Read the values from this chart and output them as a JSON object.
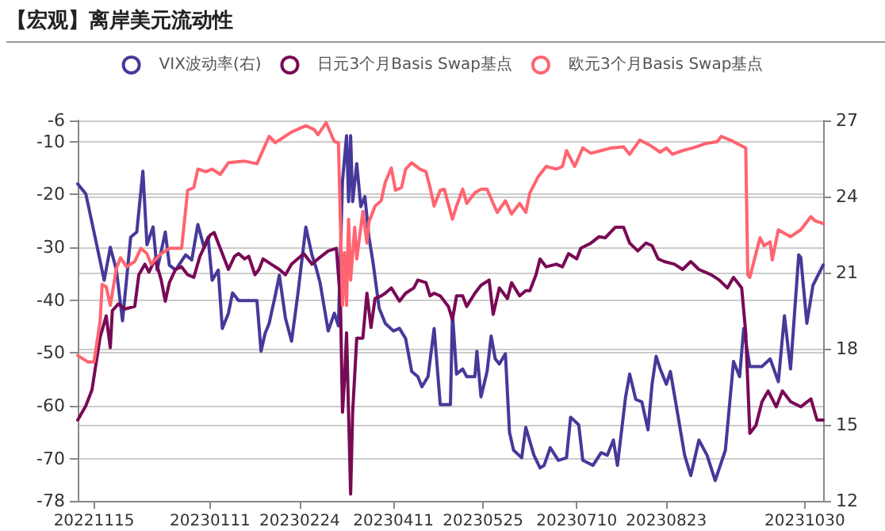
{
  "chart_data": {
    "type": "line",
    "title": "【宏观】离岸美元流动性",
    "legend": "top",
    "grid": "y",
    "marker": "none",
    "line_style": "solid",
    "xlim": [
      "2022-11-07",
      "2023-11-08"
    ],
    "xticks": [
      {
        "value": "2022-11-15",
        "label": "20221115"
      },
      {
        "value": "2023-01-11",
        "label": "20230111"
      },
      {
        "value": "2023-02-24",
        "label": "20230224"
      },
      {
        "value": "2023-04-11",
        "label": "20230411"
      },
      {
        "value": "2023-05-25",
        "label": "20230525"
      },
      {
        "value": "2023-07-10",
        "label": "20230710"
      },
      {
        "value": "2023-08-23",
        "label": "20230823"
      },
      {
        "value": "2023-10-30",
        "label": "20231030"
      }
    ],
    "ylim": [
      -78,
      -6
    ],
    "yticks": [
      -78,
      -70,
      -60,
      -50,
      -40,
      -30,
      -20,
      -10,
      -6
    ],
    "y2lim": [
      12,
      27
    ],
    "y2ticks": [
      12,
      15,
      18,
      21,
      24,
      27
    ],
    "series": [
      {
        "name": "VIX波动率(右)",
        "color": "#46399a",
        "axis": "y2",
        "x": [
          "2022-11-07",
          "2022-11-11",
          "2022-11-15",
          "2022-11-20",
          "2022-11-23",
          "2022-11-26",
          "2022-11-29",
          "2022-12-03",
          "2022-12-06",
          "2022-12-09",
          "2022-12-11",
          "2022-12-14",
          "2022-12-16",
          "2022-12-20",
          "2022-12-22",
          "2022-12-25",
          "2022-12-30",
          "2023-01-02",
          "2023-01-05",
          "2023-01-08",
          "2023-01-10",
          "2023-01-12",
          "2023-01-15",
          "2023-01-17",
          "2023-01-20",
          "2023-01-22",
          "2023-01-25",
          "2023-01-30",
          "2023-02-03",
          "2023-02-05",
          "2023-02-07",
          "2023-02-09",
          "2023-02-12",
          "2023-02-14",
          "2023-02-17",
          "2023-02-20",
          "2023-02-23",
          "2023-02-27",
          "2023-03-02",
          "2023-03-04",
          "2023-03-06",
          "2023-03-10",
          "2023-03-13",
          "2023-03-15",
          "2023-03-17",
          "2023-03-19",
          "2023-03-20",
          "2023-03-21",
          "2023-03-22",
          "2023-03-24",
          "2023-03-26",
          "2023-03-28",
          "2023-03-30",
          "2023-04-01",
          "2023-04-04",
          "2023-04-07",
          "2023-04-11",
          "2023-04-14",
          "2023-04-17",
          "2023-04-20",
          "2023-04-23",
          "2023-04-25",
          "2023-04-28",
          "2023-05-01",
          "2023-05-04",
          "2023-05-09",
          "2023-05-10",
          "2023-05-12",
          "2023-05-15",
          "2023-05-17",
          "2023-05-21",
          "2023-05-22",
          "2023-05-24",
          "2023-05-27",
          "2023-05-29",
          "2023-05-31",
          "2023-06-02",
          "2023-06-05",
          "2023-06-07",
          "2023-06-09",
          "2023-06-13",
          "2023-06-15",
          "2023-06-19",
          "2023-06-22",
          "2023-06-24",
          "2023-06-27",
          "2023-07-01",
          "2023-07-05",
          "2023-07-07",
          "2023-07-11",
          "2023-07-13",
          "2023-07-18",
          "2023-07-22",
          "2023-07-25",
          "2023-07-28",
          "2023-07-30",
          "2023-08-03",
          "2023-08-05",
          "2023-08-08",
          "2023-08-11",
          "2023-08-14",
          "2023-08-16",
          "2023-08-18",
          "2023-08-20",
          "2023-08-23",
          "2023-08-25",
          "2023-08-28",
          "2023-09-01",
          "2023-09-04",
          "2023-09-08",
          "2023-09-12",
          "2023-09-16",
          "2023-09-21",
          "2023-09-25",
          "2023-09-28",
          "2023-09-30",
          "2023-10-03",
          "2023-10-09",
          "2023-10-13",
          "2023-10-17",
          "2023-10-20",
          "2023-10-23",
          "2023-10-27",
          "2023-10-28",
          "2023-10-31",
          "2023-11-03",
          "2023-11-08"
        ],
        "values": [
          24.5,
          24.1,
          22.6,
          20.7,
          22.0,
          21.1,
          19.1,
          22.4,
          22.6,
          25.0,
          22.1,
          22.8,
          21.1,
          22.6,
          21.3,
          21.1,
          21.7,
          21.5,
          22.9,
          22.0,
          22.4,
          20.7,
          21.1,
          18.8,
          19.4,
          20.2,
          19.9,
          19.9,
          19.9,
          17.9,
          18.6,
          19.0,
          20.1,
          20.9,
          19.2,
          18.3,
          20.1,
          22.8,
          21.7,
          21.2,
          20.6,
          18.7,
          19.4,
          18.9,
          24.6,
          26.4,
          23.8,
          26.4,
          23.8,
          25.3,
          23.6,
          24.0,
          22.4,
          21.4,
          19.6,
          19.0,
          18.7,
          18.8,
          18.4,
          17.1,
          16.9,
          16.5,
          16.9,
          18.8,
          15.8,
          15.8,
          19.4,
          17.0,
          17.2,
          16.9,
          16.9,
          17.9,
          16.1,
          17.1,
          18.5,
          17.6,
          17.4,
          17.8,
          14.7,
          14.0,
          13.7,
          14.9,
          13.8,
          13.3,
          13.4,
          14.1,
          13.6,
          13.7,
          15.3,
          15.0,
          13.6,
          13.4,
          13.9,
          13.8,
          14.4,
          13.4,
          16.1,
          17.0,
          16.0,
          15.9,
          14.8,
          16.6,
          17.7,
          17.2,
          16.6,
          17.1,
          15.7,
          13.8,
          13.0,
          14.4,
          13.8,
          12.8,
          14.0,
          17.5,
          16.9,
          18.8,
          17.3,
          17.3,
          17.6,
          16.7,
          19.3,
          17.2,
          21.7,
          21.6,
          19.0,
          20.5,
          21.3
        ]
      },
      {
        "name": "日元3个月Basis Swap基点",
        "color": "#780a55",
        "x": [
          "2022-11-07",
          "2022-11-11",
          "2022-11-14",
          "2022-11-16",
          "2022-11-18",
          "2022-11-21",
          "2022-11-23",
          "2022-11-24",
          "2022-11-27",
          "2022-11-30",
          "2022-12-05",
          "2022-12-07",
          "2022-12-10",
          "2022-12-12",
          "2022-12-15",
          "2022-12-18",
          "2022-12-20",
          "2022-12-22",
          "2022-12-25",
          "2022-12-28",
          "2022-12-31",
          "2023-01-03",
          "2023-01-06",
          "2023-01-11",
          "2023-01-13",
          "2023-01-15",
          "2023-01-17",
          "2023-01-20",
          "2023-01-23",
          "2023-01-25",
          "2023-01-28",
          "2023-01-30",
          "2023-02-02",
          "2023-02-04",
          "2023-02-06",
          "2023-02-10",
          "2023-02-14",
          "2023-02-17",
          "2023-02-20",
          "2023-02-26",
          "2023-03-02",
          "2023-03-05",
          "2023-03-10",
          "2023-03-14",
          "2023-03-16",
          "2023-03-17",
          "2023-03-18",
          "2023-03-19",
          "2023-03-21",
          "2023-03-22",
          "2023-03-24",
          "2023-03-27",
          "2023-03-29",
          "2023-03-31",
          "2023-04-02",
          "2023-04-05",
          "2023-04-07",
          "2023-04-10",
          "2023-04-14",
          "2023-04-17",
          "2023-04-21",
          "2023-04-23",
          "2023-04-27",
          "2023-04-29",
          "2023-05-01",
          "2023-05-04",
          "2023-05-08",
          "2023-05-10",
          "2023-05-12",
          "2023-05-15",
          "2023-05-17",
          "2023-05-21",
          "2023-05-24",
          "2023-05-28",
          "2023-05-30",
          "2023-06-02",
          "2023-06-06",
          "2023-06-08",
          "2023-06-12",
          "2023-06-15",
          "2023-06-17",
          "2023-06-20",
          "2023-06-22",
          "2023-06-25",
          "2023-06-30",
          "2023-07-03",
          "2023-07-06",
          "2023-07-10",
          "2023-07-12",
          "2023-07-17",
          "2023-07-21",
          "2023-07-24",
          "2023-07-29",
          "2023-08-02",
          "2023-08-05",
          "2023-08-09",
          "2023-08-13",
          "2023-08-16",
          "2023-08-19",
          "2023-08-22",
          "2023-08-27",
          "2023-08-31",
          "2023-09-04",
          "2023-09-08",
          "2023-09-14",
          "2023-09-18",
          "2023-09-22",
          "2023-09-25",
          "2023-09-29",
          "2023-10-01",
          "2023-10-03",
          "2023-10-06",
          "2023-10-09",
          "2023-10-12",
          "2023-10-16",
          "2023-10-19",
          "2023-10-23",
          "2023-10-28",
          "2023-11-02",
          "2023-11-05",
          "2023-11-08"
        ],
        "values": [
          -62.7,
          -60,
          -57,
          -52,
          -47,
          -43,
          -49,
          -42,
          -40.7,
          -41.7,
          -41.2,
          -35.2,
          -33.2,
          -34.7,
          -32.2,
          -36.2,
          -40.2,
          -36.7,
          -34.2,
          -33.7,
          -35.2,
          -35.7,
          -31.7,
          -27.7,
          -27.2,
          -29.2,
          -31.2,
          -34.2,
          -31.7,
          -31.2,
          -32.2,
          -31.7,
          -35.2,
          -34.2,
          -32.2,
          -33.2,
          -34.2,
          -35.2,
          -33.2,
          -31.2,
          -33.2,
          -32.2,
          -30.7,
          -30.2,
          -40.2,
          -61.2,
          -55.2,
          -46.2,
          -76.7,
          -61.2,
          -47.2,
          -47.2,
          -38.7,
          -45.2,
          -39.7,
          -39.2,
          -38.7,
          -37.7,
          -40.2,
          -38.7,
          -37.7,
          -36.2,
          -36.7,
          -39.2,
          -38.7,
          -39.2,
          -41.2,
          -43.7,
          -39.2,
          -39.2,
          -41.2,
          -38.7,
          -37.2,
          -36.2,
          -42.7,
          -37.7,
          -39.7,
          -36.7,
          -39.2,
          -38.2,
          -38.2,
          -35.2,
          -32.2,
          -33.7,
          -33.2,
          -33.7,
          -31.2,
          -32.2,
          -30.2,
          -29.2,
          -28,
          -28.2,
          -26.2,
          -26.2,
          -29.2,
          -30.7,
          -29.2,
          -29.7,
          -32.2,
          -32.7,
          -33.2,
          -34.2,
          -32.7,
          -34.2,
          -35.2,
          -36.2,
          -37.7,
          -35.7,
          -37.7,
          -46.2,
          -65.2,
          -63.7,
          -59.2,
          -57.2,
          -60.2,
          -57.2,
          -59.2,
          -60.2,
          -58.7,
          -62.7,
          -62.7
        ]
      },
      {
        "name": "欧元3个月Basis Swap基点",
        "color": "#ff6470",
        "x": [
          "2022-11-07",
          "2022-11-12",
          "2022-11-15",
          "2022-11-18",
          "2022-11-19",
          "2022-11-21",
          "2022-11-23",
          "2022-11-26",
          "2022-11-28",
          "2022-12-01",
          "2022-12-05",
          "2022-12-08",
          "2022-12-11",
          "2022-12-13",
          "2022-12-18",
          "2022-12-22",
          "2022-12-28",
          "2022-12-31",
          "2023-01-03",
          "2023-01-05",
          "2023-01-09",
          "2023-01-12",
          "2023-01-16",
          "2023-01-20",
          "2023-01-28",
          "2023-02-03",
          "2023-02-09",
          "2023-02-12",
          "2023-02-20",
          "2023-02-27",
          "2023-03-03",
          "2023-03-05",
          "2023-03-09",
          "2023-03-13",
          "2023-03-15",
          "2023-03-17",
          "2023-03-18",
          "2023-03-19",
          "2023-03-20",
          "2023-03-21",
          "2023-03-23",
          "2023-03-24",
          "2023-03-27",
          "2023-03-29",
          "2023-03-30",
          "2023-04-02",
          "2023-04-05",
          "2023-04-07",
          "2023-04-10",
          "2023-04-12",
          "2023-04-15",
          "2023-04-17",
          "2023-04-20",
          "2023-04-24",
          "2023-04-27",
          "2023-04-29",
          "2023-05-01",
          "2023-05-04",
          "2023-05-06",
          "2023-05-10",
          "2023-05-12",
          "2023-05-15",
          "2023-05-17",
          "2023-05-21",
          "2023-05-24",
          "2023-05-27",
          "2023-05-30",
          "2023-06-01",
          "2023-06-05",
          "2023-06-08",
          "2023-06-12",
          "2023-06-15",
          "2023-06-17",
          "2023-06-21",
          "2023-06-25",
          "2023-06-30",
          "2023-07-03",
          "2023-07-05",
          "2023-07-09",
          "2023-07-13",
          "2023-07-17",
          "2023-07-22",
          "2023-07-27",
          "2023-08-02",
          "2023-08-05",
          "2023-08-10",
          "2023-08-15",
          "2023-08-20",
          "2023-08-23",
          "2023-08-26",
          "2023-08-31",
          "2023-09-05",
          "2023-09-11",
          "2023-09-17",
          "2023-09-19",
          "2023-09-25",
          "2023-10-01",
          "2023-10-02",
          "2023-10-03",
          "2023-10-06",
          "2023-10-08",
          "2023-10-10",
          "2023-10-13",
          "2023-10-14",
          "2023-10-17",
          "2023-10-23",
          "2023-10-28",
          "2023-11-02",
          "2023-11-04",
          "2023-11-08"
        ],
        "values": [
          -50.5,
          -51.7,
          -51.7,
          -44,
          -37,
          -37.5,
          -41,
          -34,
          -32,
          -33.7,
          -32.7,
          -30.2,
          -31.2,
          -33.2,
          -31.2,
          -30.2,
          -30.2,
          -19.2,
          -18.7,
          -15.2,
          -15.7,
          -15.2,
          -16.2,
          -14,
          -13.7,
          -14.2,
          -9,
          -10.2,
          -8.2,
          -7,
          -7.7,
          -8.7,
          -6.4,
          -10,
          -10.2,
          -41,
          -31,
          -41,
          -24.7,
          -36.2,
          -26.2,
          -32.2,
          -23.2,
          -29.2,
          -25.2,
          -22.2,
          -21.2,
          -17.7,
          -15,
          -19.2,
          -18.7,
          -15.2,
          -14,
          -15.2,
          -15.7,
          -18.7,
          -22.2,
          -19.2,
          -19,
          -24.7,
          -22.2,
          -19,
          -21.7,
          -19.7,
          -19,
          -19,
          -21.7,
          -23.4,
          -21.2,
          -23.7,
          -21.7,
          -23.4,
          -19.7,
          -16.7,
          -14.7,
          -15.2,
          -14.7,
          -11.7,
          -14.7,
          -11.2,
          -12.2,
          -11.7,
          -11.2,
          -11,
          -12.4,
          -9.7,
          -10.7,
          -12,
          -11.2,
          -12.4,
          -11.7,
          -11.2,
          -10.4,
          -10,
          -9,
          -10,
          -11.2,
          -35.2,
          -35.7,
          -31.2,
          -28.2,
          -29.7,
          -29,
          -32.4,
          -26.7,
          -28,
          -26.7,
          -24.2,
          -25,
          -25.5
        ]
      }
    ]
  }
}
